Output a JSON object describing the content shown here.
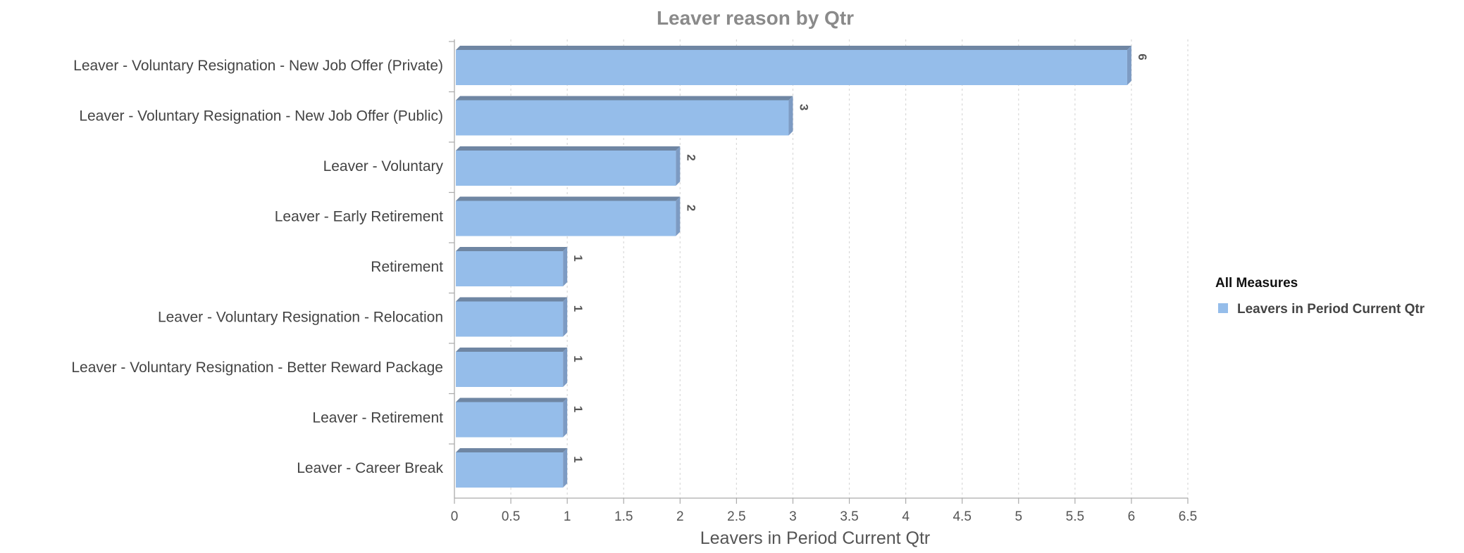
{
  "chart_data": {
    "type": "bar",
    "orientation": "horizontal",
    "title": "Leaver reason by Qtr",
    "xlabel": "Leavers in Period Current Qtr",
    "ylabel": "",
    "categories": [
      "Leaver - Voluntary Resignation - New Job Offer (Private)",
      "Leaver - Voluntary Resignation - New Job Offer (Public)",
      "Leaver - Voluntary",
      "Leaver - Early Retirement",
      "Retirement",
      "Leaver - Voluntary Resignation - Relocation",
      "Leaver - Voluntary Resignation - Better Reward Package",
      "Leaver - Retirement",
      "Leaver - Career Break"
    ],
    "series": [
      {
        "name": "Leavers in Period Current Qtr",
        "values": [
          6,
          3,
          2,
          2,
          1,
          1,
          1,
          1,
          1
        ],
        "color": "#95bdea"
      }
    ],
    "xlim": [
      0,
      6.5
    ],
    "xticks": [
      "0",
      "0.5",
      "1",
      "1.5",
      "2",
      "2.5",
      "3",
      "3.5",
      "4",
      "4.5",
      "5",
      "5.5",
      "6",
      "6.5"
    ],
    "grid": true,
    "legend": {
      "title": "All Measures",
      "position": "right"
    },
    "colors": {
      "bar_face": "#95bdea",
      "bar_top": "#6f86a3",
      "bar_side": "#7d9bc3",
      "grid": "#d9d9d9",
      "axis": "#aaaaaa"
    }
  }
}
